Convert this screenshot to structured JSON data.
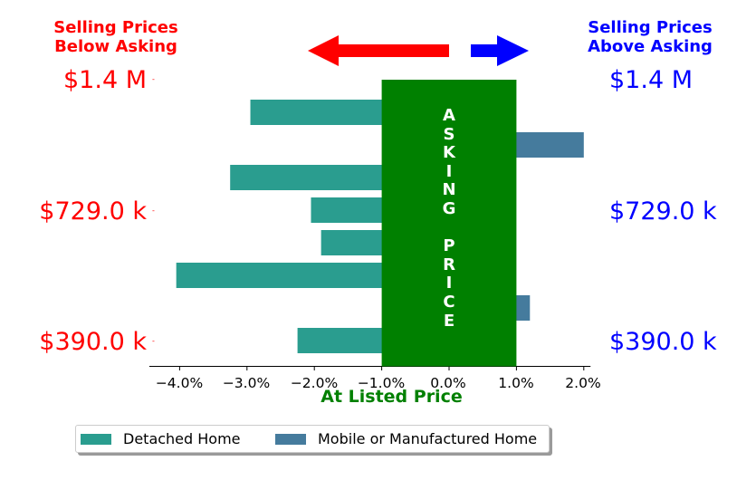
{
  "header": {
    "left_line1": "Selling Prices",
    "left_line2": "Below Asking",
    "right_line1": "Selling Prices",
    "right_line2": "Above Asking"
  },
  "side_labels": {
    "left": [
      "$1.4 M",
      "$729.0 k",
      "$390.0 k"
    ],
    "right": [
      "$1.4 M",
      "$729.0 k",
      "$390.0 k"
    ],
    "tick_mark": "-"
  },
  "asking_band": {
    "text_line1": "ASKING",
    "text_line2": "PRICE",
    "color": "#008000"
  },
  "arrows": {
    "left_color": "#ff0000",
    "right_color": "#0000ff"
  },
  "chart_data": {
    "type": "bar",
    "orientation": "horizontal",
    "xlabel": "At Listed Price",
    "xticks": [
      "−4.0%",
      "−3.0%",
      "−2.0%",
      "−1.0%",
      "0.0%",
      "1.0%",
      "2.0%"
    ],
    "xtick_values": [
      -4.0,
      -3.0,
      -2.0,
      -1.0,
      0.0,
      1.0,
      2.0
    ],
    "series": [
      {
        "name": "Detached Home",
        "color": "#2a9d8f"
      },
      {
        "name": "Mobile or Manufactured Home",
        "color": "#457b9d"
      }
    ],
    "bars": [
      {
        "series": 0,
        "value": -2.95
      },
      {
        "series": 1,
        "value": 2.0
      },
      {
        "series": 0,
        "value": -3.25
      },
      {
        "series": 0,
        "value": -2.05
      },
      {
        "series": 0,
        "value": -1.9
      },
      {
        "series": 0,
        "value": -4.05
      },
      {
        "series": 1,
        "value": 1.2
      },
      {
        "series": 0,
        "value": -2.25
      }
    ],
    "band_range": [
      -1.0,
      1.0
    ],
    "xlim": [
      -4.45,
      2.1
    ],
    "legend_position": "bottom"
  }
}
